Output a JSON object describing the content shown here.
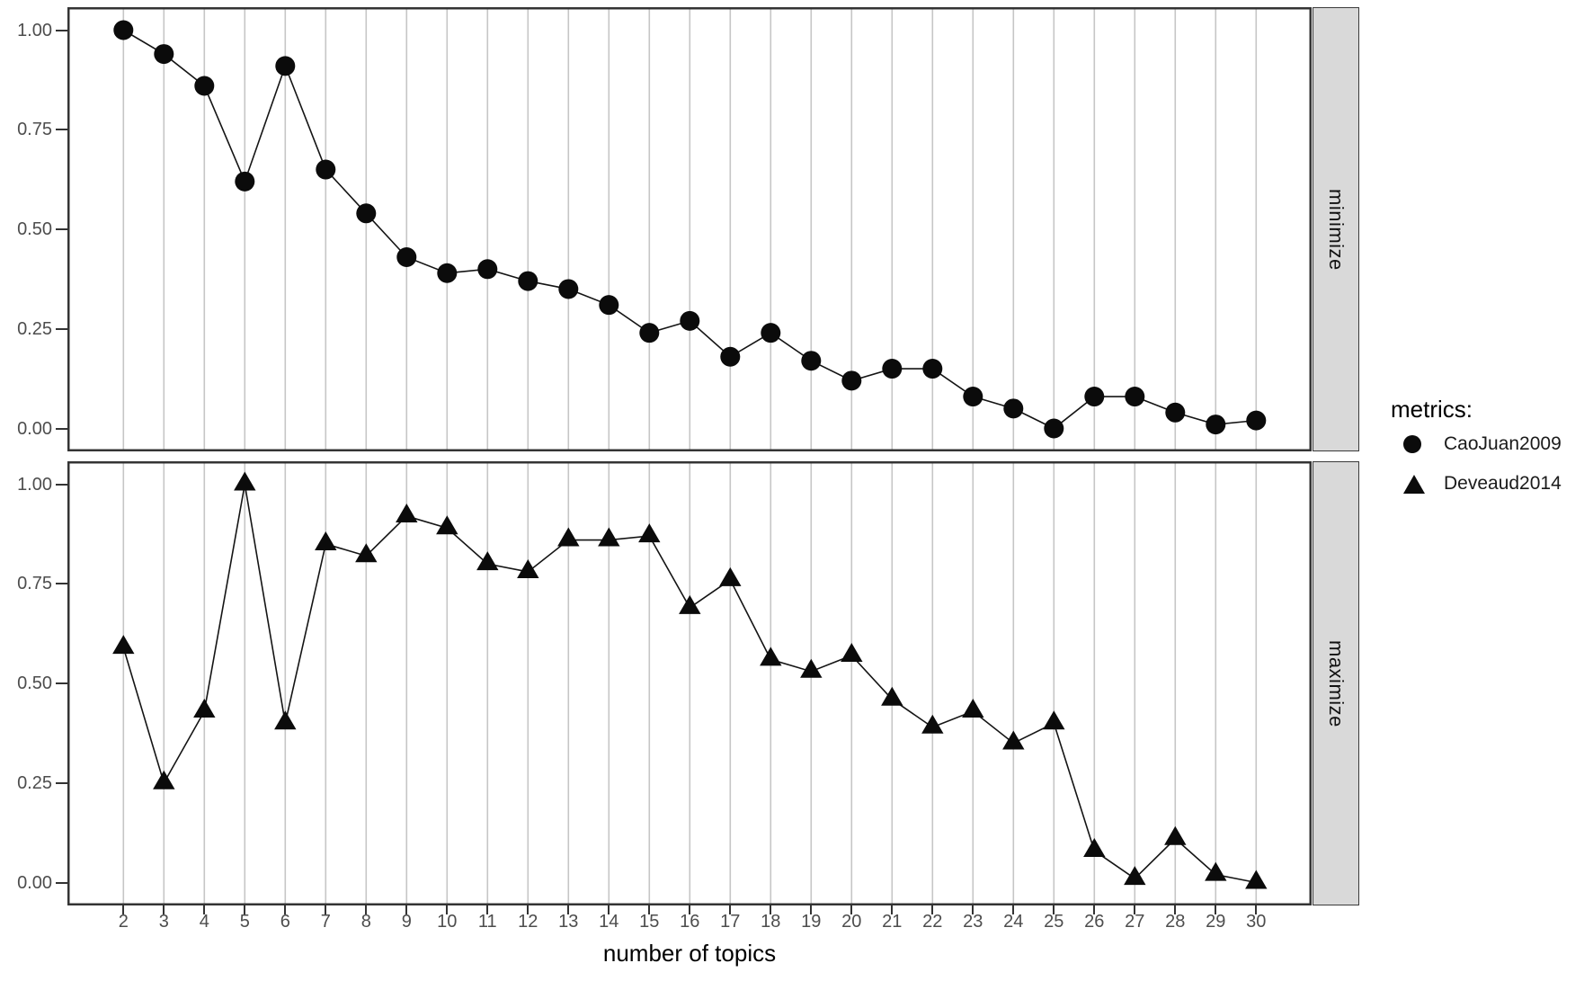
{
  "chart_data": {
    "type": "line",
    "x": [
      2,
      3,
      4,
      5,
      6,
      7,
      8,
      9,
      10,
      11,
      12,
      13,
      14,
      15,
      16,
      17,
      18,
      19,
      20,
      21,
      22,
      23,
      24,
      25,
      26,
      27,
      28,
      29,
      30
    ],
    "xlabel": "number of topics",
    "ylim": [
      0,
      1
    ],
    "y_tick_labels": [
      "1.00",
      "0.75",
      "0.50",
      "0.25",
      "0.00"
    ],
    "y_tick_values": [
      1.0,
      0.75,
      0.5,
      0.25,
      0.0
    ],
    "grid": "vertical-major-only",
    "legend_position": "right-middle",
    "facets": [
      {
        "label": "minimize",
        "series": {
          "name": "CaoJuan2009",
          "marker": "circle",
          "values": [
            1.0,
            0.94,
            0.86,
            0.62,
            0.91,
            0.65,
            0.54,
            0.43,
            0.39,
            0.4,
            0.37,
            0.35,
            0.31,
            0.24,
            0.27,
            0.18,
            0.24,
            0.17,
            0.12,
            0.15,
            0.15,
            0.08,
            0.05,
            0.0,
            0.08,
            0.08,
            0.04,
            0.01,
            0.02
          ]
        }
      },
      {
        "label": "maximize",
        "series": {
          "name": "Deveaud2014",
          "marker": "triangle",
          "values": [
            0.59,
            0.25,
            0.43,
            1.0,
            0.4,
            0.85,
            0.82,
            0.92,
            0.89,
            0.8,
            0.78,
            0.86,
            0.86,
            0.87,
            0.69,
            0.76,
            0.56,
            0.53,
            0.57,
            0.46,
            0.39,
            0.43,
            0.35,
            0.4,
            0.08,
            0.01,
            0.11,
            0.02,
            0.0
          ]
        }
      }
    ],
    "legend": {
      "title": "metrics:",
      "entries": [
        {
          "label": "CaoJuan2009",
          "marker": "circle"
        },
        {
          "label": "Deveaud2014",
          "marker": "triangle"
        }
      ]
    }
  },
  "colors": {
    "point": "#0b0b0b",
    "line": "#141414",
    "grid": "#c6c6c6",
    "panel_border": "#343434",
    "strip_bg": "#d9d9d9",
    "tick_text": "#4d4d4d",
    "title_text": "#000000",
    "background": "#ffffff"
  }
}
